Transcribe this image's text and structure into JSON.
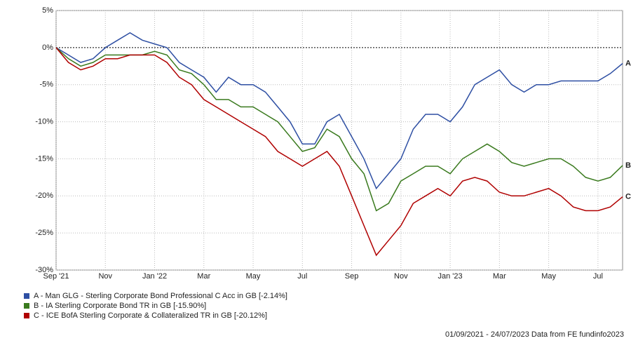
{
  "chart_data": {
    "type": "line",
    "categories": [
      "Sep '21",
      null,
      null,
      null,
      "Nov",
      null,
      null,
      null,
      "Jan '22",
      null,
      null,
      null,
      "Mar",
      null,
      null,
      null,
      "May",
      null,
      null,
      null,
      "Jul",
      null,
      null,
      null,
      "Sep",
      null,
      null,
      null,
      "Nov",
      null,
      null,
      null,
      "Jan '23",
      null,
      null,
      null,
      "Mar",
      null,
      null,
      null,
      "May",
      null,
      null,
      null,
      "Jul",
      null,
      null
    ],
    "series": [
      {
        "name": "A - Man GLG - Sterling Corporate Bond Professional C Acc in GB [-2.14%]",
        "label": "A",
        "color": "#2e4fa3",
        "values": [
          0,
          -1,
          -2,
          -1.5,
          0,
          1,
          2,
          1,
          0.5,
          0,
          -2,
          -3,
          -4,
          -6,
          -4,
          -5,
          -5,
          -6,
          -8,
          -10,
          -13,
          -13,
          -10,
          -9,
          -12,
          -15,
          -19,
          -17,
          -15,
          -11,
          -9,
          -9,
          -10,
          -8,
          -5,
          -4,
          -3,
          -5,
          -6,
          -5,
          -5,
          -4.5,
          -4.5,
          -4.5,
          -4.5,
          -3.5,
          -2.14
        ]
      },
      {
        "name": "B - IA Sterling Corporate Bond TR in GB [-15.90%]",
        "label": "B",
        "color": "#3a7a1e",
        "values": [
          0,
          -1.5,
          -2.5,
          -2,
          -1,
          -1,
          -1,
          -1,
          -0.5,
          -1,
          -3,
          -3.5,
          -5,
          -7,
          -7,
          -8,
          -8,
          -9,
          -10,
          -12,
          -14,
          -13.5,
          -11,
          -12,
          -15,
          -17,
          -22,
          -21,
          -18,
          -17,
          -16,
          -16,
          -17,
          -15,
          -14,
          -13,
          -14,
          -15.5,
          -16,
          -15.5,
          -15,
          -15,
          -16,
          -17.5,
          -18,
          -17.5,
          -15.9
        ]
      },
      {
        "name": "C - ICE BofA Sterling Corporate & Collateralized TR in GB [-20.12%]",
        "label": "C",
        "color": "#b00000",
        "values": [
          0,
          -2,
          -3,
          -2.5,
          -1.5,
          -1.5,
          -1,
          -1,
          -1,
          -2,
          -4,
          -5,
          -7,
          -8,
          -9,
          -10,
          -11,
          -12,
          -14,
          -15,
          -16,
          -15,
          -14,
          -16,
          -20,
          -24,
          -28,
          -26,
          -24,
          -21,
          -20,
          -19,
          -20,
          -18,
          -17.5,
          -18,
          -19.5,
          -20,
          -20,
          -19.5,
          -19,
          -20,
          -21.5,
          -22,
          -22,
          -21.5,
          -20.12
        ]
      }
    ],
    "ylim": [
      -30,
      5
    ],
    "yticks": [
      {
        "value": 5,
        "label": "5%"
      },
      {
        "value": 0,
        "label": "0%"
      },
      {
        "value": -5,
        "label": "-5%"
      },
      {
        "value": -10,
        "label": "-10%"
      },
      {
        "value": -15,
        "label": "-15%"
      },
      {
        "value": -20,
        "label": "-20%"
      },
      {
        "value": -25,
        "label": "-25%"
      },
      {
        "value": -30,
        "label": "-30%"
      }
    ],
    "grid": true,
    "footer": "01/09/2021 - 24/07/2023 Data from FE fundinfo2023"
  }
}
